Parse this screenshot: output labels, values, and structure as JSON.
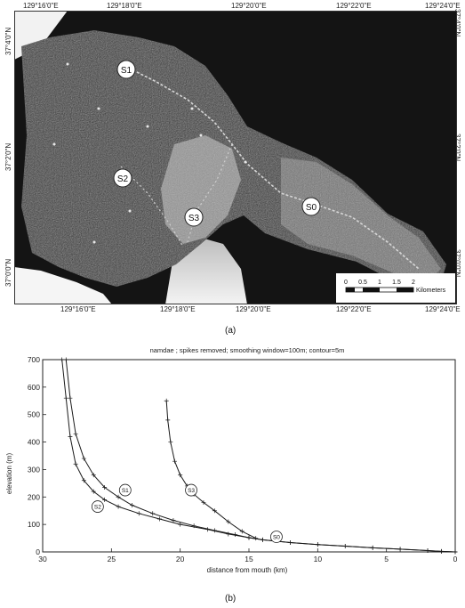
{
  "panel_a": {
    "caption": "(a)",
    "lon_ticks": [
      "129°16'0\"E",
      "129°18'0\"E",
      "129°20'0\"E",
      "129°22'0\"E",
      "129°24'0\"E"
    ],
    "lat_ticks": [
      "37°4'0\"N",
      "37°2'0\"N",
      "37°0'0\"N"
    ],
    "site_labels": [
      "S1",
      "S2",
      "S3",
      "S0"
    ],
    "scale_bar": {
      "ticks": [
        "0",
        "0.5",
        "1",
        "1.5",
        "2"
      ],
      "unit": "Kilometers"
    }
  },
  "panel_b": {
    "caption": "(b)",
    "chart_data": {
      "type": "line",
      "title": "namdae ; spikes removed; smoothing window=100m; contour=5m",
      "xlabel": "distance from mouth (km)",
      "ylabel": "elevation (m)",
      "xlim": [
        30,
        0
      ],
      "ylim": [
        0,
        700
      ],
      "x_ticks": [
        "30",
        "25",
        "20",
        "15",
        "10",
        "5",
        "0"
      ],
      "y_ticks": [
        "0",
        "100",
        "200",
        "300",
        "400",
        "500",
        "600",
        "700"
      ],
      "series": [
        {
          "name": "S1",
          "x": [
            28.3,
            28.0,
            27.6,
            27.0,
            26.3,
            25.5,
            24.5,
            23.5,
            22.0,
            20.5,
            19.0,
            17.5,
            16.0,
            15.0,
            14.0,
            12.0,
            10.0,
            8.0,
            6.0,
            4.0,
            2.0,
            1.0,
            0.0
          ],
          "y": [
            700,
            560,
            430,
            340,
            280,
            235,
            200,
            170,
            140,
            115,
            95,
            78,
            63,
            52,
            44,
            34,
            27,
            21,
            15,
            10,
            5,
            2,
            0
          ]
        },
        {
          "name": "S2",
          "x": [
            28.6,
            28.3,
            28.0,
            27.6,
            27.0,
            26.3,
            25.5,
            24.5,
            23.0,
            21.5,
            20.0,
            18.0,
            16.5,
            15.0,
            14.0,
            12.0,
            10.0,
            8.0,
            6.0,
            4.0,
            2.0,
            1.0,
            0.0
          ],
          "y": [
            700,
            560,
            420,
            320,
            260,
            220,
            190,
            165,
            140,
            120,
            100,
            82,
            65,
            52,
            44,
            34,
            27,
            21,
            15,
            10,
            5,
            2,
            0
          ]
        },
        {
          "name": "S3",
          "x": [
            21.0,
            20.9,
            20.7,
            20.4,
            20.0,
            19.5,
            19.0,
            18.3,
            17.5,
            16.5,
            15.5,
            14.5
          ],
          "y": [
            550,
            480,
            400,
            330,
            280,
            240,
            210,
            180,
            150,
            110,
            75,
            50
          ]
        }
      ],
      "annotations": [
        "S1",
        "S2",
        "S3",
        "S0"
      ]
    }
  }
}
